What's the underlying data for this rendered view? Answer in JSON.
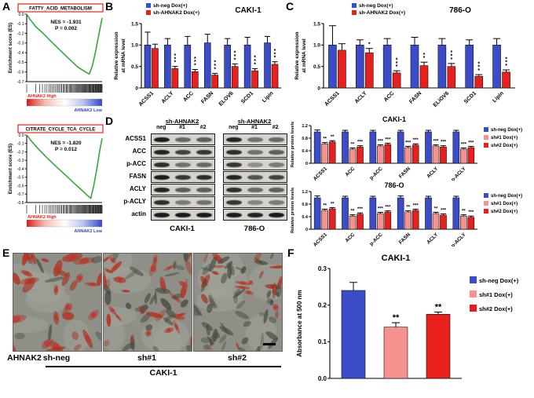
{
  "panel_labels": {
    "a": "A",
    "b": "B",
    "c": "C",
    "d": "D",
    "e": "E",
    "f": "F"
  },
  "colors": {
    "blue": "#3b4cc8",
    "red": "#e8201d",
    "pink": "#f5918f",
    "green": "#3aa43a",
    "high_text": "#e8201d",
    "low_text": "#2a3fd0"
  },
  "chart_data": [
    {
      "id": "gsea1",
      "type": "line",
      "title": "FATTY_ACID_METABOLISM",
      "nes": "NES = -1.931",
      "p": "P = 0.002",
      "ylabel": "Enrichment score (ES)",
      "ymin": -0.7,
      "yticks": [
        "0.0",
        "-0.1",
        "-0.2",
        "-0.3",
        "-0.4",
        "-0.5",
        "-0.6",
        "-0.7"
      ],
      "high_label": "AHNAK2 High",
      "low_label": "AHNAK2 Low",
      "curve": [
        [
          0,
          0
        ],
        [
          0.04,
          -0.05
        ],
        [
          0.12,
          -0.13
        ],
        [
          0.22,
          -0.2
        ],
        [
          0.32,
          -0.28
        ],
        [
          0.45,
          -0.38
        ],
        [
          0.57,
          -0.47
        ],
        [
          0.68,
          -0.55
        ],
        [
          0.78,
          -0.6
        ],
        [
          0.83,
          -0.62
        ],
        [
          0.87,
          -0.54
        ],
        [
          0.91,
          -0.4
        ],
        [
          0.95,
          -0.24
        ],
        [
          1,
          -0.04
        ]
      ]
    },
    {
      "id": "gsea2",
      "type": "line",
      "title": "CITRATE_CYCLE_TCA_CYCLE",
      "nes": "NES = -1.820",
      "p": "P = 0.012",
      "ylabel": "Enrichment score (ES)",
      "ymin": -0.8,
      "yticks": [
        "0.0",
        "-0.1",
        "-0.2",
        "-0.3",
        "-0.4",
        "-0.5",
        "-0.6",
        "-0.7",
        "-0.8"
      ],
      "high_label": "AHNAK2 High",
      "low_label": "AHNAK2 Low",
      "curve": [
        [
          0,
          0
        ],
        [
          0.07,
          -0.08
        ],
        [
          0.16,
          -0.17
        ],
        [
          0.28,
          -0.28
        ],
        [
          0.4,
          -0.38
        ],
        [
          0.52,
          -0.48
        ],
        [
          0.64,
          -0.58
        ],
        [
          0.74,
          -0.66
        ],
        [
          0.81,
          -0.72
        ],
        [
          0.85,
          -0.75
        ],
        [
          0.89,
          -0.6
        ],
        [
          0.93,
          -0.4
        ],
        [
          0.97,
          -0.18
        ],
        [
          1,
          -0.04
        ]
      ]
    },
    {
      "id": "b",
      "type": "bar",
      "title": "CAKI-1",
      "ylabel_lines": [
        "Relative expression",
        "at mRNA level"
      ],
      "ymax": 1.5,
      "yticks": [
        "0",
        "0.5",
        "1.0",
        "1.5"
      ],
      "categories": [
        "ACSS1",
        "ACLY",
        "ACC",
        "FASN",
        "ELOV6",
        "SCD1",
        "Lipin"
      ],
      "series": [
        {
          "name": "sh-neg Dox(+)",
          "color": "#3b4cc8",
          "values": [
            1.0,
            1.0,
            1.0,
            1.05,
            1.0,
            1.0,
            1.05
          ],
          "errors": [
            0.3,
            0.15,
            0.2,
            0.2,
            0.15,
            0.18,
            0.15
          ]
        },
        {
          "name": "sh-AHNAK2 Dox(+)",
          "color": "#e8201d",
          "values": [
            0.92,
            0.45,
            0.38,
            0.3,
            0.5,
            0.4,
            0.55
          ],
          "errors": [
            0.1,
            0.05,
            0.05,
            0.04,
            0.06,
            0.05,
            0.06
          ],
          "sig": [
            "",
            "***",
            "***",
            "***",
            "***",
            "***",
            "***"
          ]
        }
      ]
    },
    {
      "id": "c",
      "type": "bar",
      "title": "786-O",
      "ylabel_lines": [
        "Relative expression",
        "at mRNA level"
      ],
      "ymax": 1.5,
      "yticks": [
        "0",
        "0.5",
        "1.0",
        "1.5"
      ],
      "categories": [
        "ACSS1",
        "ACLY",
        "ACC",
        "FASN",
        "ELiOV6",
        "SCD1",
        "Lipin"
      ],
      "series": [
        {
          "name": "sh-neg Dox(+)",
          "color": "#3b4cc8",
          "values": [
            1.0,
            1.0,
            1.0,
            1.0,
            1.0,
            1.0,
            1.0
          ],
          "errors": [
            0.45,
            0.12,
            0.15,
            0.18,
            0.15,
            0.12,
            0.15
          ]
        },
        {
          "name": "sh-AHNAK2 Dox(+)",
          "color": "#e8201d",
          "values": [
            0.88,
            0.82,
            0.35,
            0.52,
            0.5,
            0.27,
            0.37
          ],
          "errors": [
            0.15,
            0.1,
            0.05,
            0.08,
            0.07,
            0.04,
            0.05
          ],
          "sig": [
            "",
            "*",
            "***",
            "**",
            "***",
            "***",
            "***"
          ]
        }
      ]
    },
    {
      "id": "d1",
      "type": "bar",
      "title": "CAKI-1",
      "ylabel": "Relative protein levels",
      "ymax": 1.2,
      "yticks": [
        "0",
        "0.4",
        "0.8",
        "1.2"
      ],
      "categories": [
        "ACSS1",
        "ACC",
        "p-ACC",
        "FASN",
        "ACLY",
        "p-ACLY"
      ],
      "series": [
        {
          "name": "sh-neg Dox(+)",
          "color": "#3b4cc8",
          "values": [
            1,
            1,
            1,
            1,
            1,
            1
          ],
          "errors": [
            0.06,
            0.05,
            0.05,
            0.05,
            0.05,
            0.05
          ]
        },
        {
          "name": "sh#1 Dox(+)",
          "color": "#f5918f",
          "values": [
            0.62,
            0.45,
            0.55,
            0.5,
            0.55,
            0.45
          ],
          "errors": [
            0.04,
            0.04,
            0.04,
            0.04,
            0.04,
            0.04
          ],
          "sig": [
            "**",
            "**",
            "***",
            "***",
            "***",
            "***"
          ]
        },
        {
          "name": "sh#2 Dox(+)",
          "color": "#e8201d",
          "values": [
            0.68,
            0.52,
            0.6,
            0.58,
            0.52,
            0.5
          ],
          "errors": [
            0.04,
            0.04,
            0.04,
            0.04,
            0.04,
            0.04
          ],
          "sig": [
            "**",
            "***",
            "***",
            "***",
            "***",
            "***"
          ]
        }
      ]
    },
    {
      "id": "d2",
      "type": "bar",
      "title": "786-O",
      "ylabel": "Relative protein levels",
      "ymax": 1.2,
      "yticks": [
        "0",
        "0.4",
        "0.8",
        "1.2"
      ],
      "categories": [
        "ACSS1",
        "ACC",
        "p-ACC",
        "FASN",
        "ACLY",
        "p-ACLY"
      ],
      "series": [
        {
          "name": "sh-neg Dox(+)",
          "color": "#3b4cc8",
          "values": [
            1,
            1,
            1,
            1,
            1,
            1
          ],
          "errors": [
            0.06,
            0.05,
            0.05,
            0.06,
            0.05,
            0.05
          ]
        },
        {
          "name": "sh#1 Dox(+)",
          "color": "#f5918f",
          "values": [
            0.6,
            0.42,
            0.5,
            0.55,
            0.5,
            0.42
          ],
          "errors": [
            0.04,
            0.04,
            0.04,
            0.04,
            0.04,
            0.04
          ],
          "sig": [
            "**",
            "**",
            "***",
            "**",
            "**",
            "**"
          ]
        },
        {
          "name": "sh#2 Dox(+)",
          "color": "#e8201d",
          "values": [
            0.65,
            0.48,
            0.55,
            0.6,
            0.45,
            0.38
          ],
          "errors": [
            0.04,
            0.04,
            0.04,
            0.04,
            0.04,
            0.04
          ],
          "sig": [
            "**",
            "***",
            "***",
            "***",
            "***",
            "***"
          ]
        }
      ]
    },
    {
      "id": "f",
      "type": "bar",
      "title": "CAKI-1",
      "ylabel": "Absorbance at 500 nm",
      "ymax": 0.3,
      "yticks": [
        "0.0",
        "0.1",
        "0.2",
        "0.3"
      ],
      "categories": [
        ""
      ],
      "series": [
        {
          "name": "sh-neg Dox(+)",
          "color": "#3b4cc8",
          "values": [
            0.24
          ],
          "errors": [
            0.022
          ]
        },
        {
          "name": "sh#1 Dox(+)",
          "color": "#f5918f",
          "values": [
            0.14
          ],
          "errors": [
            0.012
          ],
          "sig": [
            "**"
          ]
        },
        {
          "name": "sh#2 Dox(+)",
          "color": "#e8201d",
          "values": [
            0.175
          ],
          "errors": [
            0.006
          ],
          "sig": [
            "**"
          ]
        }
      ]
    }
  ],
  "panel_d": {
    "header": "sh-AHNAK2",
    "lanes": [
      "neg",
      "#1",
      "#2"
    ],
    "rows": [
      "ACSS1",
      "ACC",
      "p-ACC",
      "FASN",
      "ACLY",
      "p-ACLY",
      "actin"
    ],
    "groups": [
      {
        "name": "CAKI-1",
        "bands": [
          [
            0.95,
            0.55,
            0.6
          ],
          [
            0.9,
            0.75,
            0.8
          ],
          [
            0.85,
            0.5,
            0.55
          ],
          [
            0.95,
            0.8,
            0.85
          ],
          [
            0.9,
            0.6,
            0.6
          ],
          [
            0.85,
            0.45,
            0.5
          ],
          [
            0.95,
            0.95,
            0.95
          ]
        ]
      },
      {
        "name": "786-O",
        "bands": [
          [
            0.9,
            0.5,
            0.55
          ],
          [
            0.85,
            0.5,
            0.6
          ],
          [
            0.8,
            0.35,
            0.45
          ],
          [
            0.9,
            0.65,
            0.75
          ],
          [
            0.85,
            0.55,
            0.6
          ],
          [
            0.8,
            0.4,
            0.45
          ],
          [
            0.95,
            0.9,
            0.95
          ]
        ]
      }
    ]
  },
  "panel_e": {
    "gene_label": "AHNAK2",
    "group_labels": [
      "sh-neg",
      "sh#1",
      "sh#2"
    ],
    "cell_line": "CAKI-1",
    "images": [
      {
        "name": "oil-red-o-sh-neg",
        "cells": 38,
        "red_ratio": 0.75,
        "cell_scale": 1.3,
        "scalebar": false
      },
      {
        "name": "oil-red-o-sh1",
        "cells": 62,
        "red_ratio": 0.45,
        "cell_scale": 1.0,
        "scalebar": false
      },
      {
        "name": "oil-red-o-sh2",
        "cells": 74,
        "red_ratio": 0.35,
        "cell_scale": 0.95,
        "scalebar": true
      }
    ]
  }
}
